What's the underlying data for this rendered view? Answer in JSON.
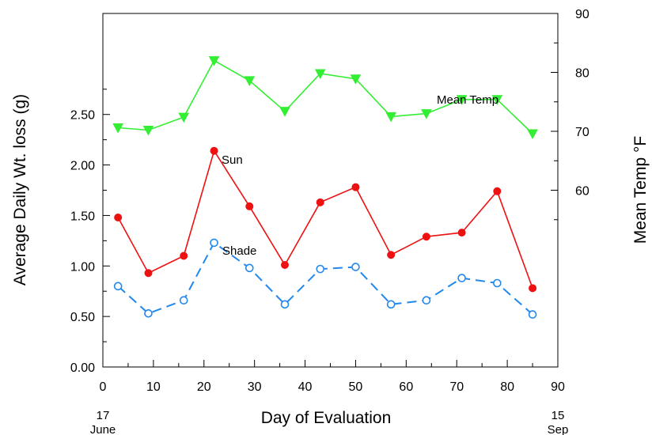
{
  "chart_data": {
    "type": "line",
    "xlabel": "Day of Evaluation",
    "ylabel": "Average Daily Wt. loss (g)",
    "y2label": "Mean Temp °F",
    "xlim": [
      0,
      90
    ],
    "ylim": [
      0,
      3.5
    ],
    "y2lim": [
      30,
      90
    ],
    "x_ticks": [
      0,
      10,
      20,
      30,
      40,
      50,
      60,
      70,
      80,
      90
    ],
    "y_ticks": [
      "0.00",
      "0.50",
      "1.00",
      "1.50",
      "2.00",
      "2.50"
    ],
    "y2_ticks": [
      60,
      70,
      80,
      90
    ],
    "x_start_label": {
      "day": "17",
      "month": "June"
    },
    "x_end_label": {
      "day": "15",
      "month": "Sep"
    },
    "grid": false,
    "series": [
      {
        "name": "Mean Temp",
        "axis": "right",
        "color": "#33ee33",
        "marker": "triangle-down",
        "x": [
          3,
          9,
          16,
          22,
          29,
          36,
          43,
          50,
          57,
          64,
          71,
          78,
          85
        ],
        "values": [
          70.6,
          70.2,
          72.4,
          82.0,
          78.6,
          73.4,
          79.8,
          78.9,
          72.5,
          73.0,
          75.4,
          75.4,
          69.6
        ]
      },
      {
        "name": "Sun",
        "axis": "left",
        "color": "#ee1111",
        "marker": "filled-circle",
        "x": [
          3,
          9,
          16,
          22,
          29,
          36,
          43,
          50,
          57,
          64,
          71,
          78,
          85
        ],
        "values": [
          1.48,
          0.93,
          1.1,
          2.14,
          1.59,
          1.01,
          1.63,
          1.78,
          1.11,
          1.29,
          1.33,
          1.74,
          0.78
        ]
      },
      {
        "name": "Shade",
        "axis": "left",
        "color": "#2288ee",
        "marker": "open-circle",
        "dashed": true,
        "x": [
          3,
          9,
          16,
          22,
          29,
          36,
          43,
          50,
          57,
          64,
          71,
          78,
          85
        ],
        "values": [
          0.8,
          0.53,
          0.66,
          1.23,
          0.98,
          0.62,
          0.97,
          0.99,
          0.62,
          0.66,
          0.88,
          0.83,
          0.52
        ]
      }
    ]
  }
}
